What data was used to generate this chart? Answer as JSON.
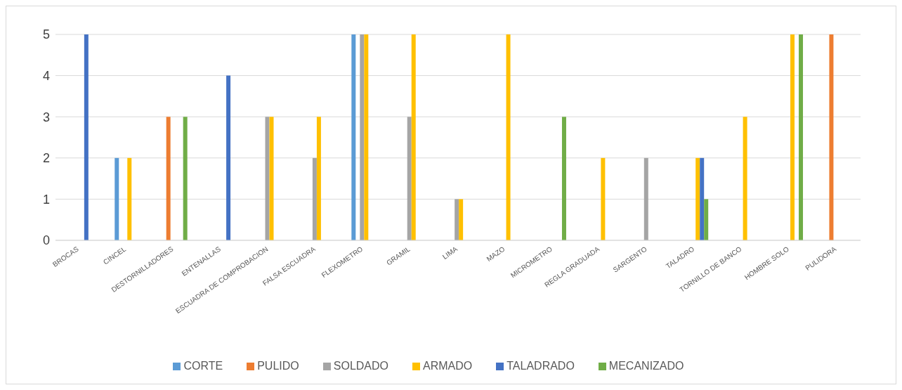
{
  "chart_data": {
    "type": "bar",
    "categories": [
      "BROCAS",
      "CINCEL",
      "DESTORNILLADORES",
      "ENTENALLAS",
      "ESCUADRA DE COMPROBACION",
      "FALSA ESCUADRA",
      "FLEXOMETRO",
      "GRAMIL",
      "LIMA",
      "MAZO",
      "MICROMETRO",
      "REGLA GRADUADA",
      "SARGENTO",
      "TALADRO",
      "TORNILLO DE BANCO",
      "HOMBRE SOLO",
      "PULIDORA"
    ],
    "series": [
      {
        "name": "CORTE",
        "color": "#5b9bd5",
        "values": [
          0,
          2,
          0,
          0,
          0,
          0,
          5,
          0,
          0,
          0,
          0,
          0,
          0,
          0,
          0,
          0,
          0
        ]
      },
      {
        "name": "PULIDO",
        "color": "#ed7d31",
        "values": [
          0,
          0,
          3,
          0,
          0,
          0,
          0,
          0,
          0,
          0,
          0,
          0,
          0,
          0,
          0,
          0,
          5
        ]
      },
      {
        "name": "SOLDADO",
        "color": "#a5a5a5",
        "values": [
          0,
          0,
          0,
          0,
          3,
          2,
          5,
          3,
          1,
          0,
          0,
          0,
          2,
          0,
          0,
          0,
          0
        ]
      },
      {
        "name": "ARMADO",
        "color": "#ffc000",
        "values": [
          0,
          2,
          0,
          0,
          3,
          3,
          5,
          5,
          1,
          5,
          0,
          2,
          0,
          2,
          3,
          5,
          0
        ]
      },
      {
        "name": "TALADRADO",
        "color": "#4472c4",
        "values": [
          5,
          0,
          0,
          4,
          0,
          0,
          0,
          0,
          0,
          0,
          0,
          0,
          0,
          2,
          0,
          0,
          0
        ]
      },
      {
        "name": "MECANIZADO",
        "color": "#70ad47",
        "values": [
          0,
          0,
          3,
          0,
          0,
          0,
          0,
          0,
          0,
          0,
          3,
          0,
          0,
          1,
          0,
          5,
          0
        ]
      }
    ],
    "ylim": [
      0,
      5
    ],
    "yticks": [
      0,
      1,
      2,
      3,
      4,
      5
    ],
    "grid": "y",
    "legend": "bottom"
  }
}
